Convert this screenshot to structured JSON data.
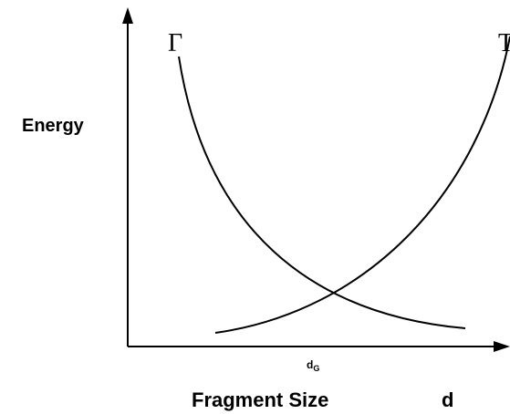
{
  "y_axis_label": "Energy",
  "x_axis_label": "Fragment Size",
  "x_axis_symbol": "d",
  "curves": [
    {
      "label": "Γ"
    },
    {
      "label": "T"
    }
  ],
  "crossing_label": {
    "text": "d",
    "subscript": "G"
  }
}
